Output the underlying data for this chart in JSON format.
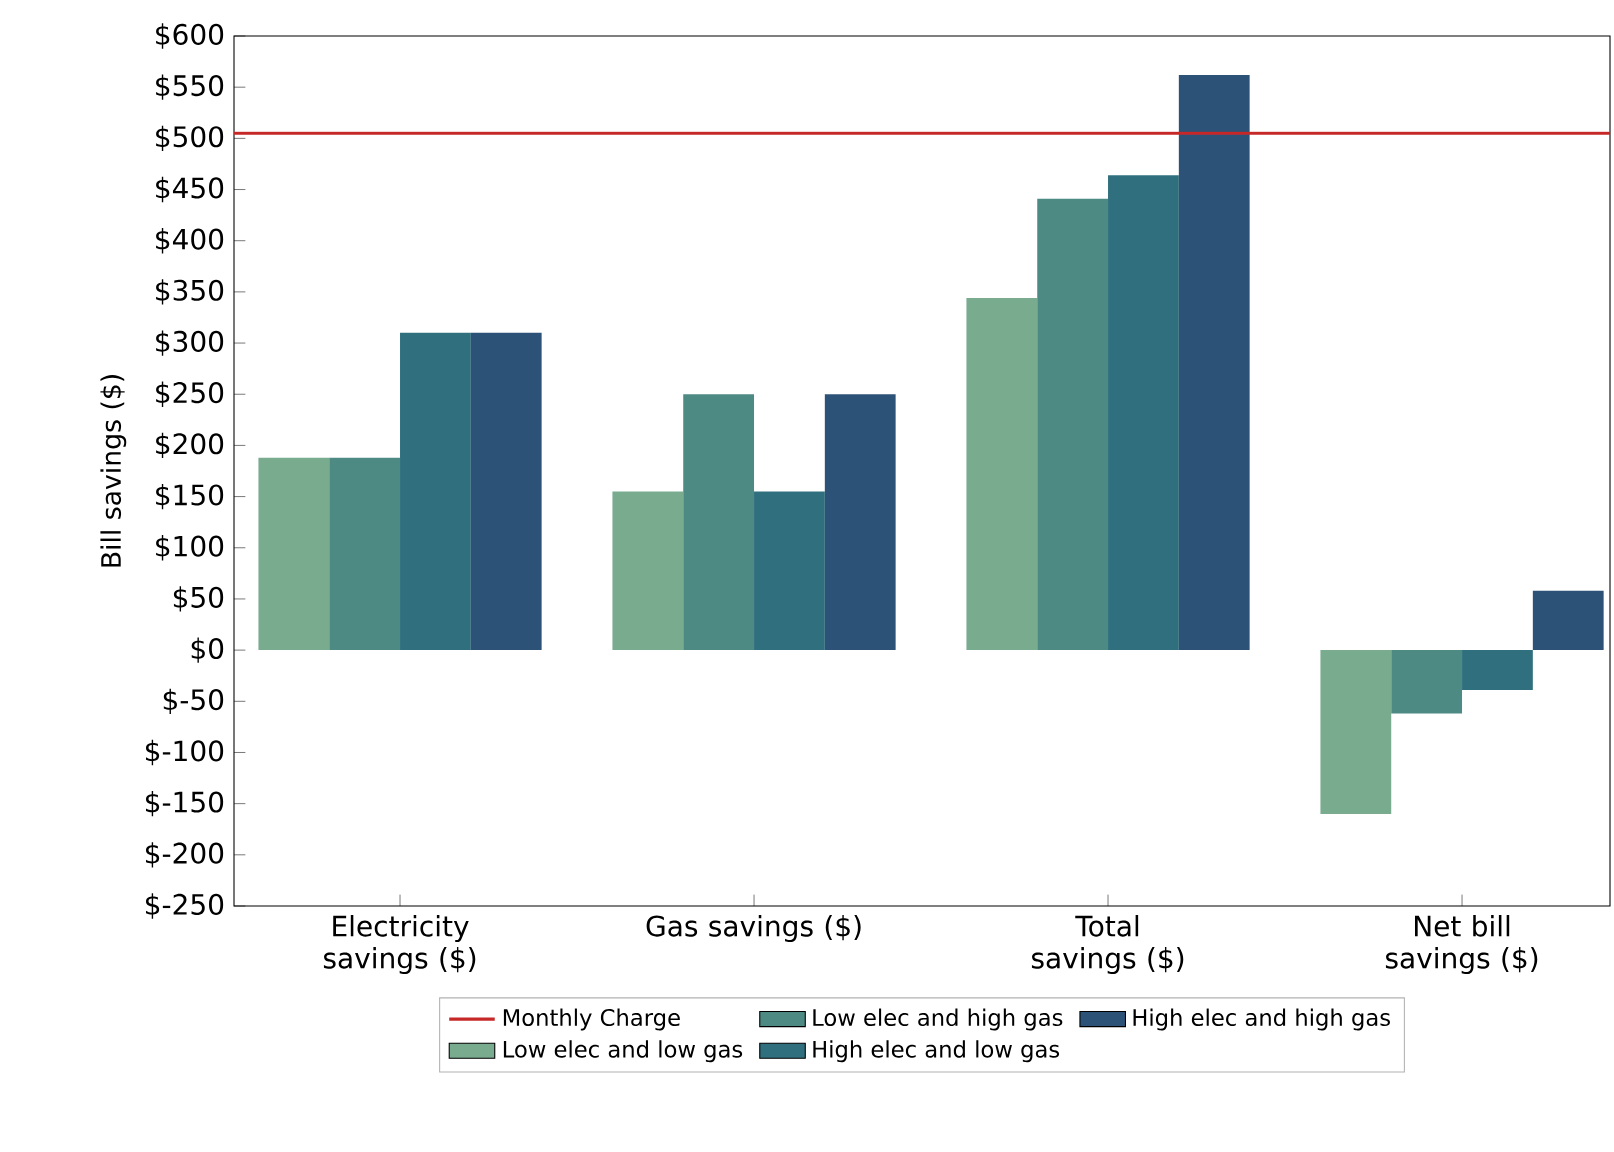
{
  "chart_data": {
    "type": "bar",
    "ylabel": "Bill savings ($)",
    "categories": [
      "Electricity savings ($)",
      "Gas savings ($)",
      "Total savings ($)",
      "Net bill savings ($)"
    ],
    "series": [
      {
        "name": "Low elec and low gas",
        "color": "#79ab8f",
        "values": [
          188,
          155,
          344,
          -160
        ]
      },
      {
        "name": "Low elec and high gas",
        "color": "#4e8a84",
        "values": [
          188,
          250,
          441,
          -62
        ]
      },
      {
        "name": "High elec and low gas",
        "color": "#30707e",
        "values": [
          310,
          155,
          464,
          -39
        ]
      },
      {
        "name": "High elec and high gas",
        "color": "#2c5277",
        "values": [
          310,
          250,
          562,
          58
        ]
      }
    ],
    "ylim": [
      -250,
      600
    ],
    "yticks": [
      {
        "value": -250,
        "label": "$-250"
      },
      {
        "value": -200,
        "label": "$-200"
      },
      {
        "value": -150,
        "label": "$-150"
      },
      {
        "value": -100,
        "label": "$-100"
      },
      {
        "value": -50,
        "label": "$-50"
      },
      {
        "value": 0,
        "label": "$0"
      },
      {
        "value": 50,
        "label": "$50"
      },
      {
        "value": 100,
        "label": "$100"
      },
      {
        "value": 150,
        "label": "$150"
      },
      {
        "value": 200,
        "label": "$200"
      },
      {
        "value": 250,
        "label": "$250"
      },
      {
        "value": 300,
        "label": "$300"
      },
      {
        "value": 350,
        "label": "$350"
      },
      {
        "value": 400,
        "label": "$400"
      },
      {
        "value": 450,
        "label": "$450"
      },
      {
        "value": 500,
        "label": "$500"
      },
      {
        "value": 550,
        "label": "$550"
      },
      {
        "value": 600,
        "label": "$600"
      }
    ],
    "ref_lines": [
      {
        "axis": "y",
        "value": 505,
        "label": "Monthly Charge",
        "color": "#c62828"
      }
    ],
    "legend": "bottom"
  }
}
